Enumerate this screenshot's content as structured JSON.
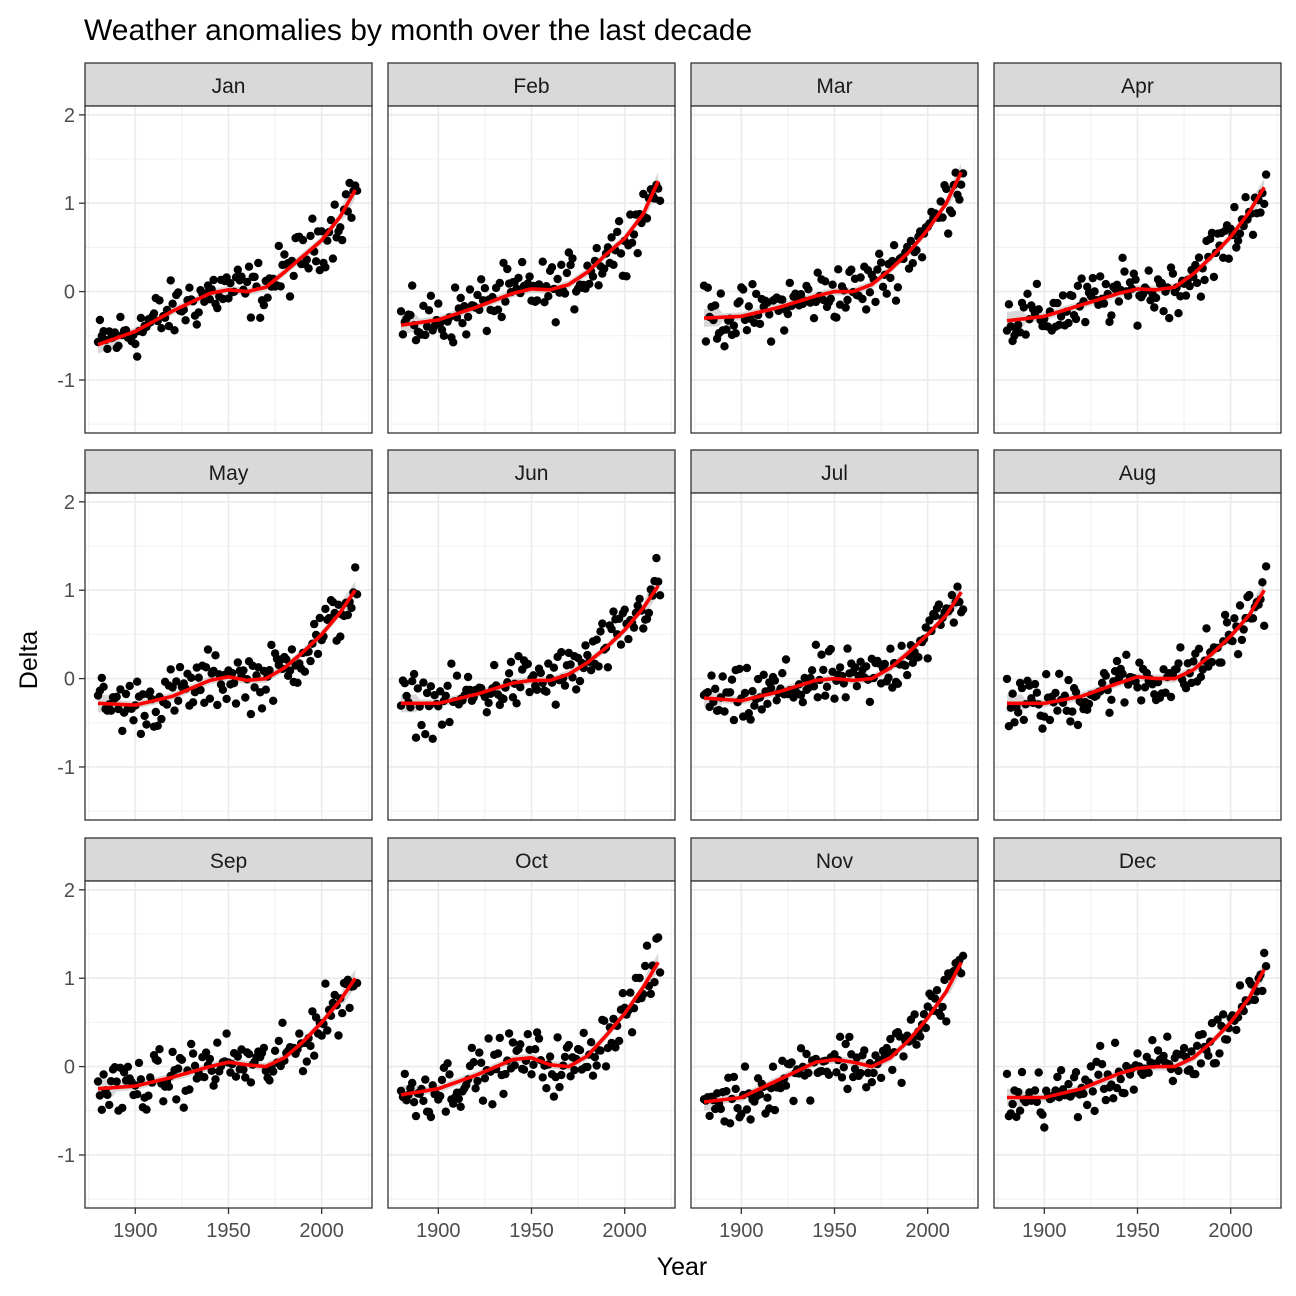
{
  "chart_data": {
    "type": "scatter",
    "title": "Weather anomalies by month over the last decade",
    "xlabel": "Year",
    "ylabel": "Delta",
    "xlim": [
      1873,
      2027
    ],
    "ylim": [
      -1.6,
      2.1
    ],
    "x_ticks": [
      1900,
      1950,
      2000
    ],
    "y_ticks": [
      -1,
      0,
      1,
      2
    ],
    "grid": true,
    "facets": "4x3",
    "point_color": "#000000",
    "smooth_color": "#ff0000",
    "band_color": "#bebebe",
    "panels": [
      {
        "label": "Jan",
        "trend": [
          [
            1880,
            -0.6
          ],
          [
            1900,
            -0.45
          ],
          [
            1920,
            -0.22
          ],
          [
            1940,
            -0.02
          ],
          [
            1950,
            0.02
          ],
          [
            1960,
            0.0
          ],
          [
            1970,
            0.05
          ],
          [
            1980,
            0.22
          ],
          [
            1990,
            0.4
          ],
          [
            2000,
            0.58
          ],
          [
            2010,
            0.85
          ],
          [
            2018,
            1.15
          ]
        ]
      },
      {
        "label": "Feb",
        "trend": [
          [
            1880,
            -0.38
          ],
          [
            1900,
            -0.32
          ],
          [
            1920,
            -0.18
          ],
          [
            1940,
            -0.02
          ],
          [
            1950,
            0.03
          ],
          [
            1960,
            0.02
          ],
          [
            1970,
            0.08
          ],
          [
            1980,
            0.22
          ],
          [
            1990,
            0.42
          ],
          [
            2000,
            0.6
          ],
          [
            2010,
            0.88
          ],
          [
            2018,
            1.25
          ]
        ]
      },
      {
        "label": "Mar",
        "trend": [
          [
            1880,
            -0.3
          ],
          [
            1900,
            -0.28
          ],
          [
            1920,
            -0.18
          ],
          [
            1940,
            -0.05
          ],
          [
            1950,
            0.0
          ],
          [
            1960,
            0.0
          ],
          [
            1970,
            0.08
          ],
          [
            1980,
            0.25
          ],
          [
            1990,
            0.45
          ],
          [
            2000,
            0.7
          ],
          [
            2010,
            1.0
          ],
          [
            2018,
            1.35
          ]
        ]
      },
      {
        "label": "Apr",
        "trend": [
          [
            1880,
            -0.33
          ],
          [
            1900,
            -0.28
          ],
          [
            1920,
            -0.15
          ],
          [
            1940,
            -0.02
          ],
          [
            1950,
            0.03
          ],
          [
            1960,
            0.02
          ],
          [
            1970,
            0.05
          ],
          [
            1980,
            0.2
          ],
          [
            1990,
            0.4
          ],
          [
            2000,
            0.62
          ],
          [
            2010,
            0.9
          ],
          [
            2018,
            1.18
          ]
        ]
      },
      {
        "label": "May",
        "trend": [
          [
            1880,
            -0.28
          ],
          [
            1900,
            -0.3
          ],
          [
            1920,
            -0.2
          ],
          [
            1940,
            -0.02
          ],
          [
            1950,
            0.02
          ],
          [
            1960,
            -0.02
          ],
          [
            1970,
            0.0
          ],
          [
            1980,
            0.12
          ],
          [
            1990,
            0.3
          ],
          [
            2000,
            0.5
          ],
          [
            2010,
            0.75
          ],
          [
            2018,
            1.0
          ]
        ]
      },
      {
        "label": "Jun",
        "trend": [
          [
            1880,
            -0.28
          ],
          [
            1900,
            -0.28
          ],
          [
            1920,
            -0.18
          ],
          [
            1940,
            -0.05
          ],
          [
            1950,
            -0.02
          ],
          [
            1960,
            -0.02
          ],
          [
            1970,
            0.05
          ],
          [
            1980,
            0.18
          ],
          [
            1990,
            0.35
          ],
          [
            2000,
            0.55
          ],
          [
            2010,
            0.8
          ],
          [
            2018,
            1.05
          ]
        ]
      },
      {
        "label": "Jul",
        "trend": [
          [
            1880,
            -0.22
          ],
          [
            1900,
            -0.25
          ],
          [
            1920,
            -0.15
          ],
          [
            1940,
            -0.02
          ],
          [
            1950,
            0.0
          ],
          [
            1960,
            -0.02
          ],
          [
            1970,
            0.0
          ],
          [
            1980,
            0.12
          ],
          [
            1990,
            0.3
          ],
          [
            2000,
            0.5
          ],
          [
            2010,
            0.72
          ],
          [
            2018,
            0.98
          ]
        ]
      },
      {
        "label": "Aug",
        "trend": [
          [
            1880,
            -0.28
          ],
          [
            1900,
            -0.28
          ],
          [
            1920,
            -0.2
          ],
          [
            1940,
            -0.05
          ],
          [
            1950,
            0.02
          ],
          [
            1960,
            0.0
          ],
          [
            1970,
            0.0
          ],
          [
            1980,
            0.1
          ],
          [
            1990,
            0.28
          ],
          [
            2000,
            0.48
          ],
          [
            2010,
            0.72
          ],
          [
            2018,
            1.0
          ]
        ]
      },
      {
        "label": "Sep",
        "trend": [
          [
            1880,
            -0.25
          ],
          [
            1900,
            -0.22
          ],
          [
            1920,
            -0.12
          ],
          [
            1940,
            0.0
          ],
          [
            1950,
            0.05
          ],
          [
            1960,
            0.02
          ],
          [
            1970,
            0.0
          ],
          [
            1980,
            0.1
          ],
          [
            1990,
            0.28
          ],
          [
            2000,
            0.5
          ],
          [
            2010,
            0.75
          ],
          [
            2018,
            1.0
          ]
        ]
      },
      {
        "label": "Oct",
        "trend": [
          [
            1880,
            -0.32
          ],
          [
            1900,
            -0.25
          ],
          [
            1920,
            -0.1
          ],
          [
            1940,
            0.08
          ],
          [
            1950,
            0.1
          ],
          [
            1960,
            0.02
          ],
          [
            1970,
            0.0
          ],
          [
            1980,
            0.12
          ],
          [
            1990,
            0.35
          ],
          [
            2000,
            0.6
          ],
          [
            2010,
            0.9
          ],
          [
            2018,
            1.18
          ]
        ]
      },
      {
        "label": "Nov",
        "trend": [
          [
            1880,
            -0.4
          ],
          [
            1900,
            -0.35
          ],
          [
            1920,
            -0.15
          ],
          [
            1940,
            0.05
          ],
          [
            1950,
            0.08
          ],
          [
            1960,
            0.05
          ],
          [
            1970,
            0.0
          ],
          [
            1980,
            0.1
          ],
          [
            1990,
            0.3
          ],
          [
            2000,
            0.55
          ],
          [
            2010,
            0.85
          ],
          [
            2018,
            1.18
          ]
        ]
      },
      {
        "label": "Dec",
        "trend": [
          [
            1880,
            -0.35
          ],
          [
            1900,
            -0.35
          ],
          [
            1920,
            -0.25
          ],
          [
            1940,
            -0.08
          ],
          [
            1950,
            -0.02
          ],
          [
            1960,
            0.0
          ],
          [
            1970,
            0.0
          ],
          [
            1980,
            0.1
          ],
          [
            1990,
            0.28
          ],
          [
            2000,
            0.5
          ],
          [
            2010,
            0.78
          ],
          [
            2018,
            1.1
          ]
        ]
      }
    ]
  }
}
